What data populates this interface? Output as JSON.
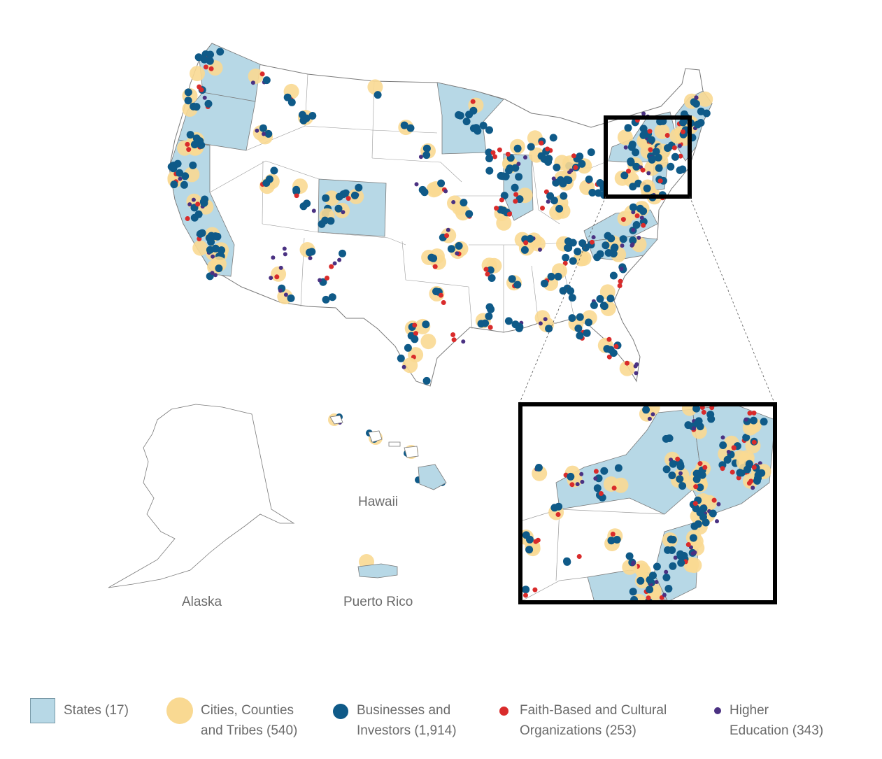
{
  "labels": {
    "alaska": "Alaska",
    "hawaii": "Hawaii",
    "puerto_rico": "Puerto Rico"
  },
  "legend": {
    "states": "States (17)",
    "cities": "Cities, Counties\nand Tribes (540)",
    "businesses": "Businesses and\nInvestors (1,914)",
    "faith": "Faith-Based and Cultural\nOrganizations (253)",
    "education": "Higher\nEducation (343)"
  },
  "colors": {
    "state_fill": "#b7d8e6",
    "city": "#f9d992",
    "business": "#0f5a88",
    "faith": "#d92b2b",
    "education": "#4a3182"
  }
}
